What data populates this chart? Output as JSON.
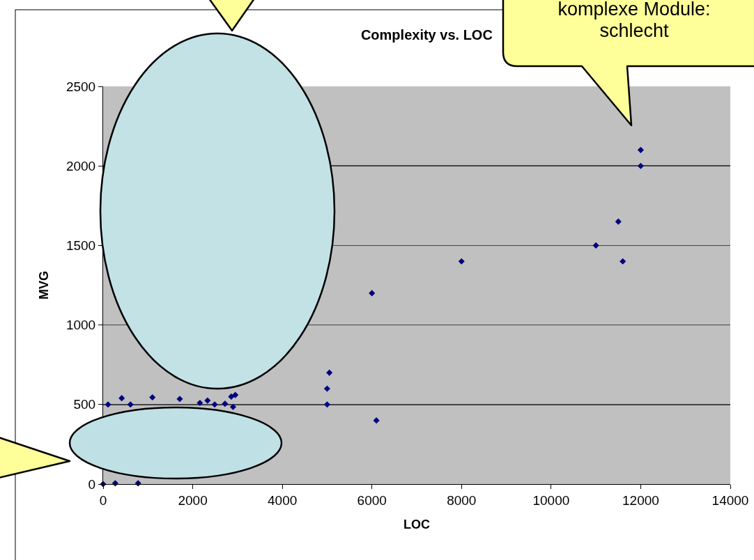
{
  "chart_data": {
    "type": "scatter",
    "title": "Complexity vs. LOC",
    "xlabel": "LOC",
    "ylabel": "MVG",
    "x": [
      0,
      270,
      780,
      110,
      415,
      610,
      1100,
      1710,
      2160,
      2330,
      2490,
      2720,
      2860,
      2950,
      2900,
      5000,
      5000,
      5050,
      6100,
      6000,
      8000,
      11000,
      11500,
      11600,
      12000,
      12000
    ],
    "series": [
      {
        "color": "#000080",
        "values": [
          0,
          5,
          5,
          500,
          540,
          500,
          545,
          535,
          510,
          525,
          500,
          505,
          550,
          560,
          485,
          500,
          600,
          700,
          400,
          1200,
          1400,
          1500,
          1650,
          1400,
          2000,
          2100
        ]
      }
    ],
    "xlim": [
      0,
      14000
    ],
    "xticks": [
      0,
      2000,
      4000,
      6000,
      8000,
      10000,
      12000,
      14000
    ],
    "ylim": [
      0,
      2500
    ],
    "yticks": [
      0,
      500,
      1000,
      1500,
      2000,
      2500
    ],
    "grid": "y",
    "marker": "diamond",
    "legend": false,
    "annotations": [
      "komplexe Module: schlecht"
    ]
  }
}
